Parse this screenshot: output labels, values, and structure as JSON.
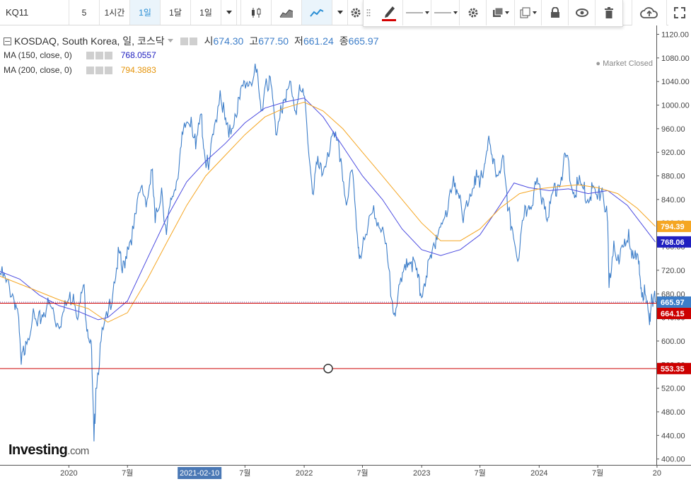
{
  "toolbar": {
    "symbol": "KQ11",
    "intervals": [
      "5",
      "1시간",
      "1일",
      "1달",
      "1일"
    ],
    "active_interval_index": 2
  },
  "legend": {
    "title": "KOSDAQ, South Korea, 일, 코스닥",
    "ohlc": [
      {
        "label": "시",
        "value": "674.30"
      },
      {
        "label": "고",
        "value": "677.50"
      },
      {
        "label": "저",
        "value": "661.24"
      },
      {
        "label": "종",
        "value": "665.97"
      }
    ],
    "ma150_label": "MA (150, close, 0)",
    "ma150_value": "768.0557",
    "ma200_label": "MA (200, close, 0)",
    "ma200_value": "794.3883"
  },
  "market_status": "Market Closed",
  "logo": {
    "main": "Investing",
    "suffix": ".com"
  },
  "colors": {
    "price": "#3d7ec9",
    "ma150": "#4b4be0",
    "ma200": "#f5a623",
    "hline": "#cc0000",
    "accent": "#2a8ed4"
  },
  "chart_data": {
    "type": "line",
    "ylim": [
      390,
      1135
    ],
    "y_ticks": [
      400,
      440,
      480,
      520,
      560,
      600,
      640,
      680,
      720,
      760,
      800,
      840,
      880,
      920,
      960,
      1000,
      1040,
      1080,
      1120
    ],
    "x_range": [
      "2019-06-01",
      "2024-12-30"
    ],
    "x_ticks": [
      {
        "date": "2020-01-01",
        "label": "2020"
      },
      {
        "date": "2020-07-01",
        "label": "7월"
      },
      {
        "date": "2021-07-01",
        "label": "7월"
      },
      {
        "date": "2022-01-01",
        "label": "2022"
      },
      {
        "date": "2022-07-01",
        "label": "7월"
      },
      {
        "date": "2023-01-01",
        "label": "2023"
      },
      {
        "date": "2023-07-01",
        "label": "7월"
      },
      {
        "date": "2024-01-01",
        "label": "2024"
      },
      {
        "date": "2024-07-01",
        "label": "7월"
      },
      {
        "date": "2025-01-01",
        "label": "20"
      }
    ],
    "highlight_x": {
      "date": "2021-02-10",
      "label": "2021-02-10"
    },
    "price_labels": [
      {
        "value": 794.39,
        "label": "794.39",
        "color": "#f5a623"
      },
      {
        "value": 768.06,
        "label": "768.06",
        "color": "#2020c0"
      },
      {
        "value": 665.97,
        "label": "665.97",
        "color": "#3d7ec9"
      },
      {
        "value": 664.15,
        "label": "664.15",
        "color": "#cc0000"
      },
      {
        "value": 553.35,
        "label": "553.35",
        "color": "#cc0000"
      }
    ],
    "hlines": [
      664.15,
      553.35
    ],
    "dotted_line": 665.97,
    "series": [
      {
        "name": "KOSDAQ",
        "points": [
          [
            "2019-06-01",
            715
          ],
          [
            "2019-06-20",
            700
          ],
          [
            "2019-07-10",
            680
          ],
          [
            "2019-07-25",
            655
          ],
          [
            "2019-08-06",
            560
          ],
          [
            "2019-08-20",
            600
          ],
          [
            "2019-09-10",
            640
          ],
          [
            "2019-09-25",
            625
          ],
          [
            "2019-10-10",
            645
          ],
          [
            "2019-10-25",
            660
          ],
          [
            "2019-11-10",
            655
          ],
          [
            "2019-11-25",
            630
          ],
          [
            "2019-12-10",
            640
          ],
          [
            "2019-12-30",
            669
          ],
          [
            "2020-01-15",
            680
          ],
          [
            "2020-01-31",
            645
          ],
          [
            "2020-02-15",
            695
          ],
          [
            "2020-02-28",
            620
          ],
          [
            "2020-03-10",
            600
          ],
          [
            "2020-03-19",
            430
          ],
          [
            "2020-03-25",
            520
          ],
          [
            "2020-04-10",
            600
          ],
          [
            "2020-04-30",
            640
          ],
          [
            "2020-05-20",
            700
          ],
          [
            "2020-06-05",
            750
          ],
          [
            "2020-06-15",
            715
          ],
          [
            "2020-07-01",
            760
          ],
          [
            "2020-07-20",
            790
          ],
          [
            "2020-08-12",
            860
          ],
          [
            "2020-08-31",
            840
          ],
          [
            "2020-09-15",
            890
          ],
          [
            "2020-09-25",
            800
          ],
          [
            "2020-10-15",
            860
          ],
          [
            "2020-10-30",
            780
          ],
          [
            "2020-11-15",
            840
          ],
          [
            "2020-11-30",
            870
          ],
          [
            "2020-12-15",
            930
          ],
          [
            "2020-12-30",
            968
          ],
          [
            "2021-01-15",
            980
          ],
          [
            "2021-01-29",
            925
          ],
          [
            "2021-02-15",
            985
          ],
          [
            "2021-02-26",
            915
          ],
          [
            "2021-03-10",
            890
          ],
          [
            "2021-03-25",
            950
          ],
          [
            "2021-04-15",
            1025
          ],
          [
            "2021-04-30",
            975
          ],
          [
            "2021-05-12",
            945
          ],
          [
            "2021-05-31",
            985
          ],
          [
            "2021-06-15",
            1010
          ],
          [
            "2021-06-30",
            1040
          ],
          [
            "2021-07-15",
            1040
          ],
          [
            "2021-08-05",
            1055
          ],
          [
            "2021-08-20",
            990
          ],
          [
            "2021-09-05",
            1045
          ],
          [
            "2021-09-20",
            1035
          ],
          [
            "2021-10-05",
            950
          ],
          [
            "2021-10-20",
            1000
          ],
          [
            "2021-11-05",
            1005
          ],
          [
            "2021-11-20",
            1040
          ],
          [
            "2021-12-05",
            990
          ],
          [
            "2021-12-20",
            1025
          ],
          [
            "2022-01-05",
            1000
          ],
          [
            "2022-01-27",
            850
          ],
          [
            "2022-02-10",
            900
          ],
          [
            "2022-02-25",
            880
          ],
          [
            "2022-03-15",
            920
          ],
          [
            "2022-04-05",
            945
          ],
          [
            "2022-04-25",
            910
          ],
          [
            "2022-05-12",
            830
          ],
          [
            "2022-05-30",
            890
          ],
          [
            "2022-06-15",
            780
          ],
          [
            "2022-06-23",
            745
          ],
          [
            "2022-07-15",
            780
          ],
          [
            "2022-08-05",
            830
          ],
          [
            "2022-08-25",
            790
          ],
          [
            "2022-09-10",
            765
          ],
          [
            "2022-09-30",
            670
          ],
          [
            "2022-10-13",
            655
          ],
          [
            "2022-10-31",
            700
          ],
          [
            "2022-11-15",
            740
          ],
          [
            "2022-11-30",
            735
          ],
          [
            "2022-12-15",
            720
          ],
          [
            "2022-12-29",
            680
          ],
          [
            "2023-01-15",
            710
          ],
          [
            "2023-01-31",
            740
          ],
          [
            "2023-02-15",
            780
          ],
          [
            "2023-03-03",
            800
          ],
          [
            "2023-03-20",
            810
          ],
          [
            "2023-04-10",
            880
          ],
          [
            "2023-04-25",
            850
          ],
          [
            "2023-05-10",
            800
          ],
          [
            "2023-05-31",
            850
          ],
          [
            "2023-06-15",
            880
          ],
          [
            "2023-06-30",
            860
          ],
          [
            "2023-07-15",
            900
          ],
          [
            "2023-07-26",
            939
          ],
          [
            "2023-08-10",
            900
          ],
          [
            "2023-08-25",
            880
          ],
          [
            "2023-09-10",
            915
          ],
          [
            "2023-09-25",
            820
          ],
          [
            "2023-10-10",
            790
          ],
          [
            "2023-10-30",
            740
          ],
          [
            "2023-11-15",
            810
          ],
          [
            "2023-11-30",
            830
          ],
          [
            "2023-12-15",
            850
          ],
          [
            "2023-12-28",
            866
          ],
          [
            "2024-01-15",
            840
          ],
          [
            "2024-01-31",
            810
          ],
          [
            "2024-02-15",
            860
          ],
          [
            "2024-02-28",
            865
          ],
          [
            "2024-03-15",
            890
          ],
          [
            "2024-03-26",
            915
          ],
          [
            "2024-04-15",
            850
          ],
          [
            "2024-04-30",
            865
          ],
          [
            "2024-05-15",
            860
          ],
          [
            "2024-05-31",
            840
          ],
          [
            "2024-06-15",
            860
          ],
          [
            "2024-06-30",
            840
          ],
          [
            "2024-07-15",
            860
          ],
          [
            "2024-07-31",
            805
          ],
          [
            "2024-08-05",
            690
          ],
          [
            "2024-08-20",
            770
          ],
          [
            "2024-09-05",
            730
          ],
          [
            "2024-09-20",
            760
          ],
          [
            "2024-10-05",
            790
          ],
          [
            "2024-10-20",
            740
          ],
          [
            "2024-11-05",
            730
          ],
          [
            "2024-11-13",
            690
          ],
          [
            "2024-11-25",
            680
          ],
          [
            "2024-12-09",
            627
          ],
          [
            "2024-12-15",
            680
          ],
          [
            "2024-12-27",
            665.97
          ]
        ]
      },
      {
        "name": "MA (150, close, 0)",
        "points": [
          [
            "2019-06-01",
            718
          ],
          [
            "2019-08-01",
            705
          ],
          [
            "2019-10-01",
            678
          ],
          [
            "2019-12-01",
            660
          ],
          [
            "2020-02-01",
            650
          ],
          [
            "2020-04-01",
            636
          ],
          [
            "2020-05-01",
            640
          ],
          [
            "2020-07-01",
            668
          ],
          [
            "2020-09-01",
            740
          ],
          [
            "2020-11-01",
            810
          ],
          [
            "2021-01-01",
            870
          ],
          [
            "2021-03-01",
            905
          ],
          [
            "2021-05-01",
            935
          ],
          [
            "2021-07-01",
            970
          ],
          [
            "2021-09-01",
            995
          ],
          [
            "2021-11-01",
            1005
          ],
          [
            "2022-01-01",
            1012
          ],
          [
            "2022-03-01",
            980
          ],
          [
            "2022-05-01",
            930
          ],
          [
            "2022-07-01",
            880
          ],
          [
            "2022-09-01",
            840
          ],
          [
            "2022-11-01",
            790
          ],
          [
            "2023-01-01",
            755
          ],
          [
            "2023-03-01",
            745
          ],
          [
            "2023-05-01",
            755
          ],
          [
            "2023-07-01",
            780
          ],
          [
            "2023-09-01",
            830
          ],
          [
            "2023-10-15",
            868
          ],
          [
            "2023-12-01",
            860
          ],
          [
            "2024-02-01",
            855
          ],
          [
            "2024-04-01",
            858
          ],
          [
            "2024-06-01",
            850
          ],
          [
            "2024-08-01",
            855
          ],
          [
            "2024-10-01",
            830
          ],
          [
            "2024-12-27",
            768.06
          ]
        ]
      },
      {
        "name": "MA (200, close, 0)",
        "points": [
          [
            "2019-06-01",
            710
          ],
          [
            "2019-09-01",
            690
          ],
          [
            "2019-12-01",
            670
          ],
          [
            "2020-03-01",
            655
          ],
          [
            "2020-05-01",
            632
          ],
          [
            "2020-07-01",
            648
          ],
          [
            "2020-09-01",
            705
          ],
          [
            "2020-11-01",
            768
          ],
          [
            "2021-01-01",
            830
          ],
          [
            "2021-03-01",
            880
          ],
          [
            "2021-05-01",
            915
          ],
          [
            "2021-07-01",
            950
          ],
          [
            "2021-09-01",
            980
          ],
          [
            "2021-11-01",
            995
          ],
          [
            "2022-01-01",
            1005
          ],
          [
            "2022-03-01",
            990
          ],
          [
            "2022-05-01",
            960
          ],
          [
            "2022-07-01",
            920
          ],
          [
            "2022-09-01",
            880
          ],
          [
            "2022-11-01",
            840
          ],
          [
            "2023-01-01",
            800
          ],
          [
            "2023-03-01",
            770
          ],
          [
            "2023-05-01",
            770
          ],
          [
            "2023-07-01",
            790
          ],
          [
            "2023-09-01",
            825
          ],
          [
            "2023-11-01",
            850
          ],
          [
            "2024-01-01",
            858
          ],
          [
            "2024-03-01",
            862
          ],
          [
            "2024-05-01",
            865
          ],
          [
            "2024-07-01",
            860
          ],
          [
            "2024-09-01",
            850
          ],
          [
            "2024-11-01",
            825
          ],
          [
            "2024-12-27",
            794.39
          ]
        ]
      }
    ]
  }
}
